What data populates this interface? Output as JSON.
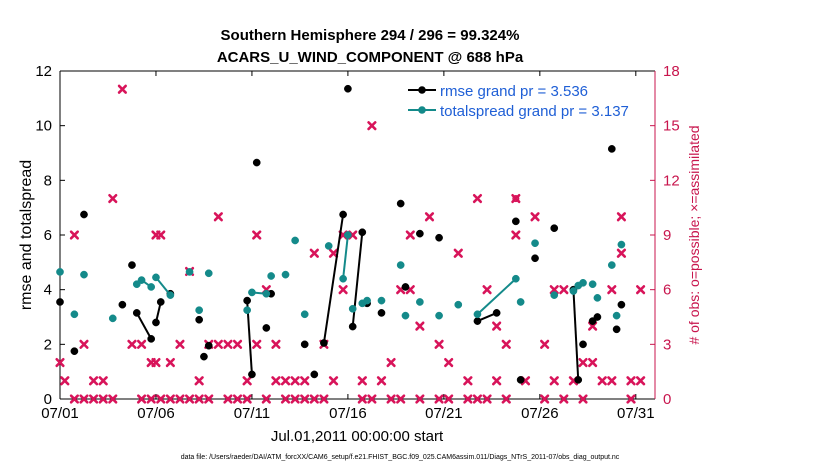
{
  "chart_data": {
    "type": "line",
    "title": "Southern Hemisphere 294 / 296 = 99.324%",
    "subtitle": "ACARS_U_WIND_COMPONENT @ 688 hPa",
    "xlabel": "Jul.01,2011 00:00:00 start",
    "ylabel": "rmse and totalspread",
    "y2label": "# of obs: o=possible; ×=assimilated",
    "footnote": "data file: /Users/raeder/DAI/ATM_forcXX/CAM6_setup/f.e21.FHIST_BGC.f09_025.CAM6assim.011/Diags_NTrS_2011-07/obs_diag_output.nc",
    "xlim": [
      1,
      32
    ],
    "ylim": [
      0,
      12
    ],
    "y2lim": [
      0,
      18
    ],
    "xticks": [
      1,
      6,
      11,
      16,
      21,
      26,
      31
    ],
    "xtick_labels": [
      "07/01",
      "07/06",
      "07/11",
      "07/16",
      "07/21",
      "07/26",
      "07/31"
    ],
    "yticks": [
      0,
      2,
      4,
      6,
      8,
      10,
      12
    ],
    "y2ticks": [
      0,
      3,
      6,
      9,
      12,
      15,
      18
    ],
    "colors": {
      "rmse": "#000000",
      "spread": "#148a8a",
      "obs": "#d8145a",
      "legend_text": "#1f5fd6",
      "right_axis": "#c8154d"
    },
    "series": [
      {
        "name": "rmse grand pr = 3.536",
        "key": "rmse",
        "x": [
          1.0,
          1.75,
          2.25,
          4.25,
          4.75,
          5.0,
          5.75,
          6.0,
          6.25,
          6.75,
          8.25,
          8.5,
          8.75,
          10.75,
          11.0,
          11.25,
          11.75,
          12.0,
          13.75,
          14.25,
          14.75,
          15.75,
          16.0,
          16.25,
          16.75,
          17.0,
          17.75,
          18.75,
          19.0,
          19.75,
          20.75,
          22.75,
          23.75,
          24.75,
          25.0,
          25.75,
          26.75,
          27.75,
          28.0,
          28.25,
          28.75,
          29.0,
          29.75,
          30.0,
          30.25
        ],
        "y": [
          3.55,
          1.75,
          6.75,
          3.45,
          4.9,
          3.15,
          2.2,
          2.8,
          3.55,
          3.85,
          2.9,
          1.55,
          1.95,
          3.6,
          0.9,
          8.65,
          2.6,
          3.85,
          2.0,
          0.9,
          2.05,
          6.75,
          11.35,
          2.65,
          6.1,
          3.5,
          3.15,
          7.15,
          4.1,
          6.05,
          5.9,
          2.85,
          3.15,
          6.5,
          0.7,
          5.15,
          6.25,
          4.0,
          0.7,
          2.0,
          2.85,
          3.0,
          9.15,
          2.55,
          3.45
        ],
        "segments": [
          [
            5,
            6
          ],
          [
            7,
            8
          ],
          [
            13,
            14
          ],
          [
            20,
            21
          ],
          [
            23,
            24
          ],
          [
            31,
            32
          ],
          [
            37,
            38
          ]
        ]
      },
      {
        "name": "totalspread grand pr = 3.137",
        "key": "spread",
        "x": [
          1.0,
          1.75,
          2.25,
          3.75,
          5.0,
          5.25,
          5.75,
          6.0,
          6.75,
          7.75,
          8.25,
          8.75,
          10.75,
          11.0,
          11.75,
          12.0,
          12.75,
          13.25,
          13.75,
          15.0,
          15.75,
          16.0,
          16.25,
          16.75,
          17.0,
          17.75,
          18.75,
          19.0,
          19.75,
          20.75,
          21.75,
          22.75,
          24.75,
          25.0,
          25.75,
          26.75,
          27.75,
          28.0,
          28.25,
          28.75,
          29.0,
          29.75,
          30.0,
          30.25
        ],
        "y": [
          4.65,
          3.1,
          4.55,
          2.95,
          4.2,
          4.35,
          4.1,
          4.45,
          3.8,
          4.65,
          3.25,
          4.6,
          3.25,
          3.9,
          3.85,
          4.5,
          4.55,
          5.8,
          3.1,
          5.6,
          4.4,
          6.0,
          3.3,
          3.5,
          3.6,
          3.6,
          4.9,
          3.05,
          3.55,
          3.05,
          3.45,
          3.1,
          4.4,
          3.55,
          5.7,
          3.8,
          3.95,
          4.15,
          4.25,
          4.2,
          3.7,
          4.9,
          3.05,
          5.65
        ],
        "segments": [
          [
            5,
            6
          ],
          [
            7,
            8
          ],
          [
            13,
            14
          ],
          [
            20,
            21
          ],
          [
            23,
            24
          ],
          [
            31,
            32
          ]
        ]
      }
    ],
    "obs_possible": {
      "x": [
        1.0,
        1.25,
        1.75,
        2.25,
        2.75,
        3.25,
        3.75,
        4.25,
        4.75,
        5.25,
        5.75,
        6.0,
        6.25,
        6.75,
        7.25,
        7.75,
        8.25,
        8.75,
        9.25,
        9.75,
        10.25,
        10.75,
        11.25,
        11.75,
        12.25,
        12.75,
        13.25,
        13.75,
        14.25,
        14.75,
        15.25,
        15.75,
        16.25,
        16.75,
        17.25,
        17.75,
        18.25,
        18.75,
        19.25,
        19.75,
        20.25,
        20.75,
        21.25,
        21.75,
        22.25,
        22.75,
        23.25,
        23.75,
        24.25,
        24.75,
        25.25,
        25.75,
        26.25,
        26.75,
        27.25,
        27.75,
        28.25,
        28.75,
        29.25,
        29.75,
        30.25,
        30.75,
        31.25
      ],
      "y": [
        2,
        1,
        0,
        0,
        0,
        0,
        0,
        17,
        3,
        0,
        0,
        9,
        0,
        0,
        0,
        0,
        0,
        0,
        3,
        0,
        0,
        0,
        9,
        0,
        1,
        0,
        0,
        0,
        0,
        0,
        1,
        6,
        9,
        0,
        0,
        1,
        0,
        0,
        6,
        0,
        10,
        0,
        0,
        8,
        0,
        0,
        6,
        4,
        0,
        11,
        1,
        10,
        0,
        1,
        0,
        1,
        0,
        2,
        1,
        1,
        8,
        0,
        1
      ]
    },
    "obs_assimilated": {
      "x": [
        1.0,
        1.25,
        1.75,
        2.25,
        2.75,
        3.25,
        3.75,
        4.25,
        4.75,
        5.25,
        5.75,
        6.0,
        6.25,
        6.75,
        7.25,
        7.75,
        8.25,
        8.75,
        9.25,
        9.75,
        10.25,
        10.75,
        11.25,
        11.75,
        12.25,
        12.75,
        13.25,
        13.75,
        14.25,
        14.75,
        15.25,
        15.75,
        16.25,
        16.75,
        17.25,
        17.75,
        18.25,
        18.75,
        19.25,
        19.75,
        20.25,
        20.75,
        21.25,
        21.75,
        22.25,
        22.75,
        23.25,
        23.75,
        24.25,
        24.75,
        25.25,
        25.75,
        26.25,
        26.75,
        27.25,
        27.75,
        28.25,
        28.75,
        29.25,
        29.75,
        30.25,
        30.75,
        31.25
      ],
      "y": [
        2,
        1,
        9,
        3,
        1,
        1,
        11,
        17,
        3,
        3,
        2,
        2,
        9,
        2,
        3,
        7,
        1,
        3,
        10,
        3,
        3,
        1,
        3,
        6,
        3,
        1,
        1,
        1,
        8,
        3,
        8,
        9,
        9,
        1,
        15,
        1,
        2,
        6,
        9,
        4,
        10,
        3,
        2,
        8,
        1,
        11,
        0,
        1,
        3,
        9,
        1,
        10,
        3,
        6,
        6,
        1,
        2,
        4,
        1,
        6,
        10,
        1,
        6
      ]
    }
  },
  "legend": {
    "rmse": "rmse grand pr = 3.536",
    "spread": "totalspread grand pr = 3.137"
  }
}
